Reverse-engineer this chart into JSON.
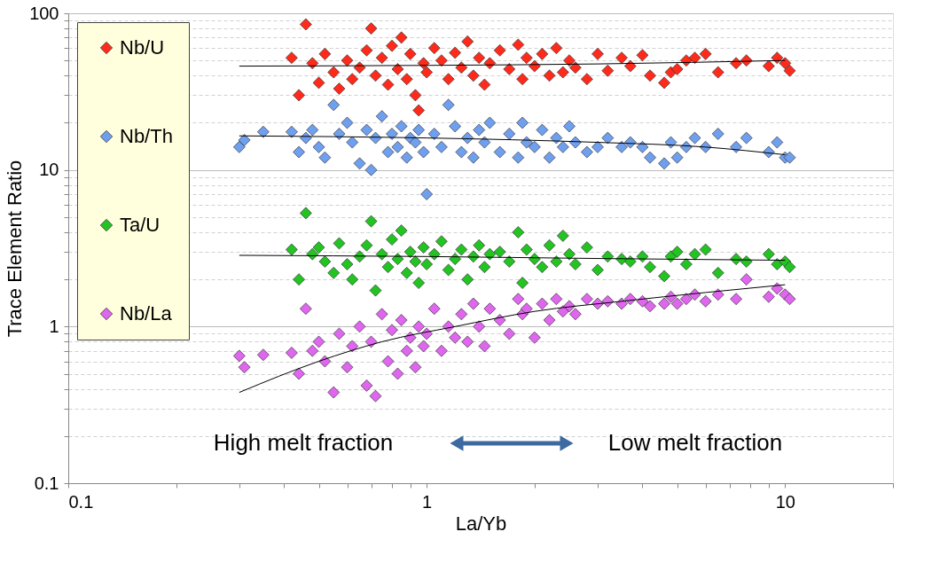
{
  "chart_data": {
    "type": "scatter",
    "xlabel": "La/Yb",
    "ylabel": "Trace Element Ratio",
    "xlim": [
      0.1,
      20
    ],
    "ylim": [
      0.1,
      100
    ],
    "xticks": [
      0.1,
      {
        "value": 0.2,
        "label": null
      },
      {
        "value": 0.3,
        "label": null
      },
      {
        "value": 0.4,
        "label": null
      },
      {
        "value": 0.5,
        "label": null
      },
      {
        "value": 0.6,
        "label": null
      },
      {
        "value": 0.7,
        "label": null
      },
      {
        "value": 0.8,
        "label": null
      },
      {
        "value": 0.9,
        "label": null
      },
      1,
      {
        "value": 2,
        "label": null
      },
      {
        "value": 3,
        "label": null
      },
      {
        "value": 4,
        "label": null
      },
      {
        "value": 5,
        "label": null
      },
      {
        "value": 6,
        "label": null
      },
      {
        "value": 7,
        "label": null
      },
      {
        "value": 8,
        "label": null
      },
      {
        "value": 9,
        "label": null
      },
      10,
      {
        "value": 20,
        "label": null
      }
    ],
    "yticks": [
      0.1,
      {
        "value": 0.2,
        "label": null
      },
      {
        "value": 0.3,
        "label": null
      },
      {
        "value": 0.4,
        "label": null
      },
      {
        "value": 0.5,
        "label": null
      },
      {
        "value": 0.6,
        "label": null
      },
      {
        "value": 0.7,
        "label": null
      },
      {
        "value": 0.8,
        "label": null
      },
      {
        "value": 0.9,
        "label": null
      },
      1,
      {
        "value": 2,
        "label": null
      },
      {
        "value": 3,
        "label": null
      },
      {
        "value": 4,
        "label": null
      },
      {
        "value": 5,
        "label": null
      },
      {
        "value": 6,
        "label": null
      },
      {
        "value": 7,
        "label": null
      },
      {
        "value": 8,
        "label": null
      },
      {
        "value": 9,
        "label": null
      },
      10,
      {
        "value": 20,
        "label": null
      },
      {
        "value": 30,
        "label": null
      },
      {
        "value": 40,
        "label": null
      },
      {
        "value": 50,
        "label": null
      },
      {
        "value": 60,
        "label": null
      },
      {
        "value": 70,
        "label": null
      },
      {
        "value": 80,
        "label": null
      },
      {
        "value": 90,
        "label": null
      },
      100
    ],
    "log": "xy",
    "grid": "y",
    "legend": "top left",
    "marker": "diamond",
    "annotations": [
      "High melt fraction",
      "Low melt fraction"
    ],
    "x": [
      0.42,
      0.44,
      0.46,
      0.48,
      0.5,
      0.52,
      0.55,
      0.57,
      0.6,
      0.62,
      0.65,
      0.68,
      0.7,
      0.72,
      0.75,
      0.78,
      0.8,
      0.83,
      0.85,
      0.88,
      0.9,
      0.93,
      0.95,
      0.98,
      1.0,
      1.05,
      1.1,
      1.15,
      1.2,
      1.25,
      1.3,
      1.35,
      1.4,
      1.45,
      1.5,
      1.6,
      1.7,
      1.8,
      1.85,
      1.9,
      2.0,
      2.1,
      2.2,
      2.3,
      2.4,
      2.5,
      2.6,
      2.8,
      3.0,
      3.2,
      3.5,
      3.7,
      4.0,
      4.2,
      4.6,
      4.8,
      5.0,
      5.3,
      5.6,
      6.0,
      6.5,
      7.3,
      7.8,
      9.0,
      9.5,
      10.0,
      10.3
    ],
    "series": [
      {
        "name": "Nb/U",
        "color": "#ff2a1a",
        "values": [
          52,
          30,
          85,
          48,
          36,
          55,
          42,
          33,
          50,
          38,
          45,
          58,
          80,
          40,
          52,
          35,
          62,
          44,
          70,
          38,
          55,
          30,
          24,
          48,
          42,
          60,
          50,
          38,
          56,
          45,
          66,
          40,
          52,
          35,
          48,
          58,
          44,
          63,
          38,
          52,
          46,
          55,
          40,
          60,
          42,
          50,
          45,
          38,
          55,
          43,
          52,
          46,
          54,
          40,
          36,
          42,
          44,
          50,
          52,
          55,
          42,
          48,
          50,
          46,
          52,
          48,
          43
        ]
      },
      {
        "name": "Nb/Th",
        "color": "#6fa0f0",
        "x": [
          0.3,
          0.31,
          0.35,
          0.42,
          0.44,
          0.46,
          0.48,
          0.5,
          0.52,
          0.55,
          0.57,
          0.6,
          0.62,
          0.65,
          0.68,
          0.7,
          0.72,
          0.75,
          0.78,
          0.8,
          0.83,
          0.85,
          0.88,
          0.9,
          0.93,
          0.95,
          0.98,
          1.0,
          1.05,
          1.1,
          1.15,
          1.2,
          1.25,
          1.3,
          1.35,
          1.4,
          1.45,
          1.5,
          1.6,
          1.7,
          1.8,
          1.85,
          1.9,
          2.0,
          2.1,
          2.2,
          2.3,
          2.4,
          2.5,
          2.6,
          2.8,
          3.0,
          3.2,
          3.5,
          3.7,
          4.0,
          4.2,
          4.6,
          4.8,
          5.0,
          5.3,
          5.6,
          6.0,
          6.5,
          7.3,
          7.8,
          9.0,
          9.5,
          10.0,
          10.3
        ],
        "values": [
          14,
          15.5,
          17.5,
          17.5,
          13,
          16,
          18,
          14,
          12,
          26,
          17,
          20,
          15,
          11,
          18,
          10,
          16,
          22,
          13,
          17,
          14,
          19,
          12,
          16,
          15,
          18,
          13,
          7,
          17,
          14,
          26,
          19,
          13,
          16,
          12,
          18,
          15,
          20,
          13,
          17,
          12,
          20,
          15,
          14,
          18,
          12,
          16,
          14,
          19,
          15,
          13,
          14,
          16,
          14,
          15,
          14,
          12,
          11,
          15,
          12,
          14,
          16,
          14,
          17,
          14,
          16,
          13,
          15,
          12,
          12
        ]
      },
      {
        "name": "Ta/U",
        "color": "#22c422",
        "values": [
          3.1,
          2.0,
          5.3,
          2.9,
          3.2,
          2.6,
          2.2,
          3.4,
          2.5,
          2.0,
          2.8,
          3.3,
          4.7,
          1.7,
          2.9,
          2.4,
          3.6,
          2.7,
          4.1,
          2.2,
          3.0,
          2.6,
          1.9,
          3.2,
          2.5,
          2.9,
          3.5,
          2.3,
          2.7,
          3.1,
          2.0,
          2.8,
          3.3,
          2.4,
          2.9,
          3.0,
          2.6,
          4.0,
          1.9,
          3.1,
          2.7,
          2.4,
          3.3,
          2.6,
          3.8,
          2.9,
          2.5,
          3.2,
          2.3,
          2.8,
          2.7,
          2.6,
          2.8,
          2.4,
          2.1,
          2.8,
          3.0,
          2.5,
          2.9,
          3.1,
          2.2,
          2.7,
          2.6,
          2.9,
          2.5,
          2.6,
          2.4
        ]
      },
      {
        "name": "Nb/La",
        "color": "#e066f0",
        "x": [
          0.3,
          0.31,
          0.35,
          0.42,
          0.44,
          0.46,
          0.48,
          0.5,
          0.52,
          0.55,
          0.57,
          0.6,
          0.62,
          0.65,
          0.68,
          0.7,
          0.72,
          0.75,
          0.78,
          0.8,
          0.83,
          0.85,
          0.88,
          0.9,
          0.93,
          0.95,
          0.98,
          1.0,
          1.05,
          1.1,
          1.15,
          1.2,
          1.25,
          1.3,
          1.35,
          1.4,
          1.45,
          1.5,
          1.6,
          1.7,
          1.8,
          1.85,
          1.9,
          2.0,
          2.1,
          2.2,
          2.3,
          2.4,
          2.5,
          2.6,
          2.8,
          3.0,
          3.2,
          3.5,
          3.7,
          4.0,
          4.2,
          4.6,
          4.8,
          5.0,
          5.3,
          5.6,
          6.0,
          6.5,
          7.3,
          7.8,
          9.0,
          9.5,
          10.0,
          10.3
        ],
        "values": [
          0.65,
          0.55,
          0.66,
          0.68,
          0.5,
          1.3,
          0.7,
          0.8,
          0.6,
          0.38,
          0.9,
          0.55,
          0.75,
          1.0,
          0.42,
          0.8,
          0.36,
          1.2,
          0.6,
          0.95,
          0.5,
          1.1,
          0.7,
          0.85,
          0.55,
          1.0,
          0.75,
          0.9,
          1.3,
          0.7,
          1.0,
          0.85,
          1.2,
          0.8,
          1.4,
          1.0,
          0.75,
          1.3,
          1.1,
          0.9,
          1.5,
          1.2,
          1.3,
          0.85,
          1.4,
          1.1,
          1.5,
          1.25,
          1.35,
          1.2,
          1.5,
          1.4,
          1.45,
          1.4,
          1.5,
          1.45,
          1.35,
          1.4,
          1.55,
          1.4,
          1.5,
          1.6,
          1.45,
          1.6,
          1.5,
          2.0,
          1.55,
          1.75,
          1.6,
          1.5
        ]
      },
      {
        "type": "line",
        "marker": "none",
        "color": "#000000",
        "x": [
          0.3,
          1,
          3,
          10
        ],
        "values": [
          46,
          46.5,
          47.5,
          50
        ]
      },
      {
        "type": "line",
        "marker": "none",
        "color": "#000000",
        "x": [
          0.3,
          1,
          3,
          6,
          10
        ],
        "values": [
          16.5,
          16,
          15,
          14,
          12.5
        ]
      },
      {
        "type": "line",
        "marker": "none",
        "color": "#000000",
        "x": [
          0.3,
          1,
          3,
          10
        ],
        "values": [
          2.85,
          2.8,
          2.72,
          2.65
        ]
      },
      {
        "type": "line",
        "marker": "none",
        "color": "#000000",
        "x": [
          0.3,
          0.5,
          0.75,
          1.2,
          2,
          3.5,
          6,
          10
        ],
        "values": [
          0.38,
          0.6,
          0.8,
          1.0,
          1.25,
          1.45,
          1.65,
          1.85
        ]
      }
    ]
  }
}
